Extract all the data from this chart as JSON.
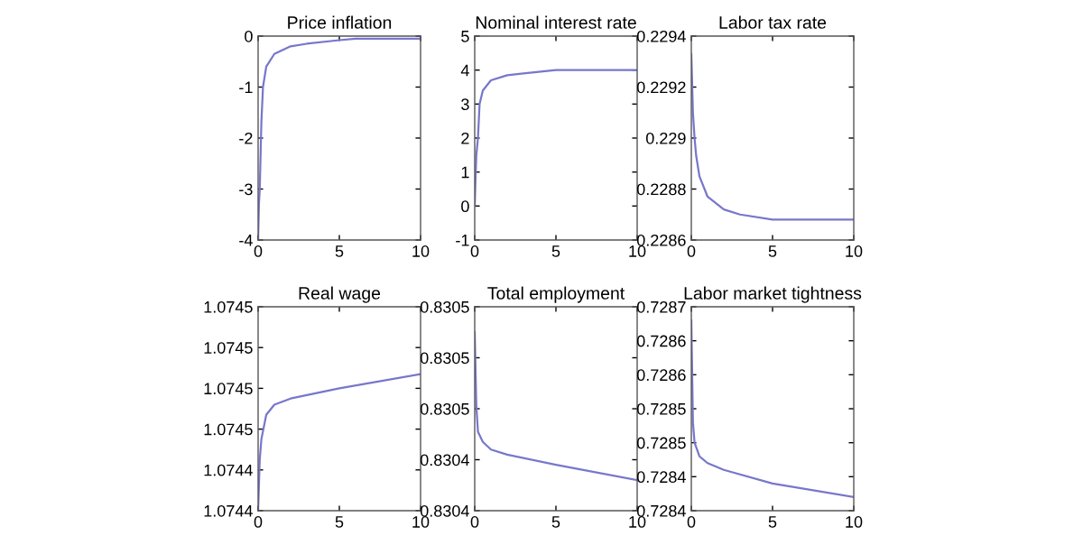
{
  "chart_data": [
    {
      "type": "line",
      "title": "Price inflation",
      "x": [
        0,
        0.05,
        0.1,
        0.2,
        0.3,
        0.5,
        1,
        2,
        3,
        5,
        6,
        10
      ],
      "series": [
        {
          "color": "#7777cc",
          "values": [
            -4,
            -3.3,
            -3,
            -1.7,
            -1.0,
            -0.6,
            -0.35,
            -0.2,
            -0.15,
            -0.08,
            -0.05,
            -0.05
          ]
        }
      ],
      "xlim": [
        0,
        10
      ],
      "xticks": [
        0,
        5,
        10
      ],
      "ylim": [
        -4,
        0
      ],
      "yticks": [
        -4,
        -3,
        -2,
        -1,
        0
      ],
      "grid": false
    },
    {
      "type": "line",
      "title": "Nominal interest rate",
      "x": [
        0,
        0.05,
        0.1,
        0.2,
        0.3,
        0.5,
        1,
        2,
        3,
        5,
        10
      ],
      "series": [
        {
          "color": "#7777cc",
          "values": [
            0,
            0.8,
            1.5,
            2.0,
            3.0,
            3.4,
            3.7,
            3.85,
            3.9,
            4.0,
            4.0
          ]
        }
      ],
      "xlim": [
        0,
        10
      ],
      "xticks": [
        0,
        5,
        10
      ],
      "ylim": [
        -1,
        5
      ],
      "yticks": [
        -1,
        0,
        1,
        2,
        3,
        4,
        5
      ],
      "grid": false
    },
    {
      "type": "line",
      "title": "Labor tax rate",
      "x": [
        0,
        0.1,
        0.2,
        0.3,
        0.5,
        1,
        2,
        3,
        5,
        10
      ],
      "series": [
        {
          "color": "#7777cc",
          "values": [
            0.22933,
            0.2291,
            0.229,
            0.22893,
            0.22885,
            0.22877,
            0.22872,
            0.2287,
            0.22868,
            0.22868
          ]
        }
      ],
      "xlim": [
        0,
        10
      ],
      "xticks": [
        0,
        5,
        10
      ],
      "ylim": [
        0.2286,
        0.2294
      ],
      "yticks": [
        0.2286,
        0.2288,
        0.229,
        0.2292,
        0.2294
      ],
      "grid": false
    },
    {
      "type": "line",
      "title": "Real wage",
      "x": [
        0,
        0.1,
        0.2,
        0.5,
        1,
        2,
        5,
        10
      ],
      "series": [
        {
          "color": "#7777cc",
          "values": [
            1.07442,
            1.074445,
            1.074455,
            1.074467,
            1.074472,
            1.074475,
            1.07448,
            1.074487
          ]
        }
      ],
      "xlim": [
        0,
        10
      ],
      "xticks": [
        0,
        5,
        10
      ],
      "ylim": [
        1.07442,
        1.07452
      ],
      "yticks": [
        {
          "value": 1.07442,
          "label": "1.0744"
        },
        {
          "value": 1.07444,
          "label": "1.0744"
        },
        {
          "value": 1.07446,
          "label": "1.0745"
        },
        {
          "value": 1.07448,
          "label": "1.0745"
        },
        {
          "value": 1.0745,
          "label": "1.0745"
        },
        {
          "value": 1.07452,
          "label": "1.0745"
        }
      ],
      "grid": false
    },
    {
      "type": "line",
      "title": "Total employment",
      "x": [
        0,
        0.1,
        0.2,
        0.5,
        1,
        2,
        5,
        10
      ],
      "series": [
        {
          "color": "#7777cc",
          "values": [
            0.83049,
            0.830461,
            0.830451,
            0.830447,
            0.830444,
            0.830442,
            0.830438,
            0.830432
          ]
        }
      ],
      "xlim": [
        0,
        10
      ],
      "xticks": [
        0,
        5,
        10
      ],
      "ylim": [
        0.83042,
        0.8305
      ],
      "yticks": [
        {
          "value": 0.83042,
          "label": "0.8304"
        },
        {
          "value": 0.83044,
          "label": "0.8304"
        },
        {
          "value": 0.83046,
          "label": "0.8305"
        },
        {
          "value": 0.83048,
          "label": "0.8305"
        },
        {
          "value": 0.8305,
          "label": "0.8305"
        }
      ],
      "grid": false
    },
    {
      "type": "line",
      "title": "Labor market tightness",
      "x": [
        0,
        0.1,
        0.2,
        0.5,
        1,
        2,
        5,
        10
      ],
      "series": [
        {
          "color": "#7777cc",
          "values": [
            0.72866,
            0.72851,
            0.72848,
            0.72846,
            0.72845,
            0.72844,
            0.72842,
            0.7284
          ]
        }
      ],
      "xlim": [
        0,
        10
      ],
      "xticks": [
        0,
        5,
        10
      ],
      "ylim": [
        0.72838,
        0.72868
      ],
      "yticks": [
        {
          "value": 0.72838,
          "label": "0.7284"
        },
        {
          "value": 0.72843,
          "label": "0.7284"
        },
        {
          "value": 0.72848,
          "label": "0.7285"
        },
        {
          "value": 0.72853,
          "label": "0.7285"
        },
        {
          "value": 0.72858,
          "label": "0.7286"
        },
        {
          "value": 0.72863,
          "label": "0.7286"
        },
        {
          "value": 0.72868,
          "label": "0.7287"
        }
      ],
      "grid": false
    }
  ]
}
